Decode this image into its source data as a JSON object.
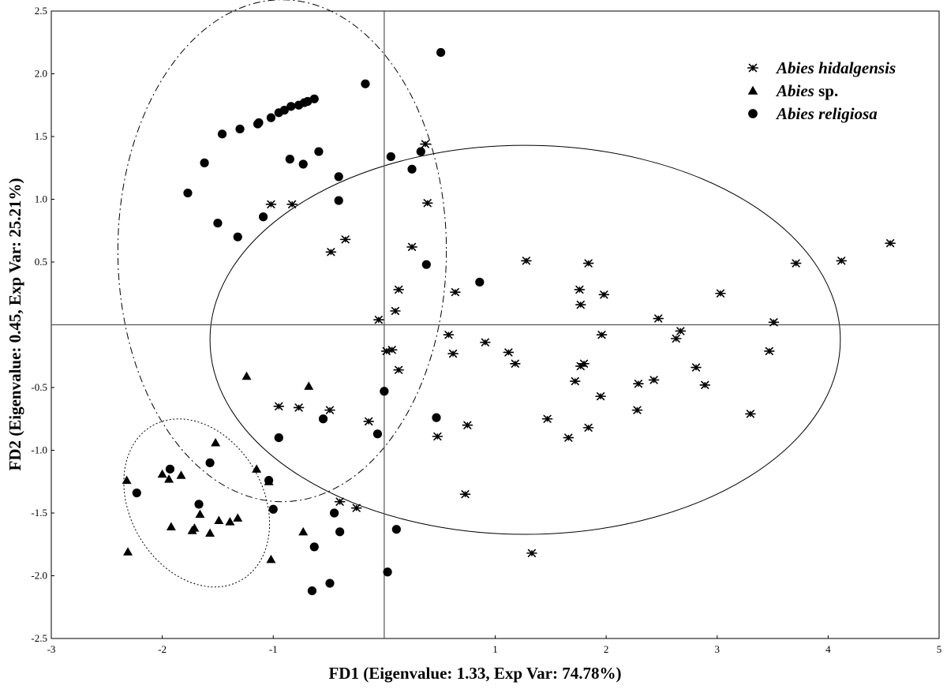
{
  "chart_data": {
    "type": "scatter",
    "xlabel": "FD1 (Eigenvalue: 1.33, Exp Var: 74.78%)",
    "ylabel": "FD2 (Eigenvalue: 0.45, Exp Var: 25.21%)",
    "xlim": [
      -3,
      5
    ],
    "ylim": [
      -2.5,
      2.5
    ],
    "x_ticks": [
      "-3",
      "-2",
      "-1",
      "1",
      "2",
      "3",
      "4",
      "5"
    ],
    "y_ticks": [
      "2.5",
      "2.0",
      "1.5",
      "1.0",
      "0.5",
      "-0.5",
      "-1.0",
      "-1.5",
      "-2.0",
      "-2.5"
    ],
    "reference_lines": {
      "x": 0,
      "y": 0
    },
    "grid": false,
    "legend_position": "top-right",
    "series": [
      {
        "name": "Abies hidalgensis",
        "legend_parts": [
          {
            "text": "Abies hidalgensis",
            "italic": true
          }
        ],
        "marker": "asterisk",
        "color": "#000000",
        "points": [
          [
            -1.02,
            0.96
          ],
          [
            -0.83,
            0.96
          ],
          [
            -0.48,
            0.58
          ],
          [
            -0.35,
            0.68
          ],
          [
            0.37,
            1.44
          ],
          [
            0.39,
            0.97
          ],
          [
            0.25,
            0.62
          ],
          [
            0.13,
            0.28
          ],
          [
            0.1,
            0.11
          ],
          [
            -0.05,
            0.04
          ],
          [
            0.64,
            0.26
          ],
          [
            0.58,
            -0.08
          ],
          [
            0.62,
            -0.23
          ],
          [
            0.02,
            -0.21
          ],
          [
            0.07,
            -0.2
          ],
          [
            0.13,
            -0.36
          ],
          [
            0.91,
            -0.14
          ],
          [
            1.12,
            -0.22
          ],
          [
            1.18,
            -0.31
          ],
          [
            1.28,
            0.51
          ],
          [
            1.47,
            -0.75
          ],
          [
            1.66,
            -0.9
          ],
          [
            1.72,
            -0.45
          ],
          [
            1.77,
            -0.33
          ],
          [
            1.8,
            -0.31
          ],
          [
            1.76,
            0.28
          ],
          [
            1.77,
            0.16
          ],
          [
            1.84,
            0.49
          ],
          [
            1.84,
            -0.82
          ],
          [
            1.95,
            -0.57
          ],
          [
            1.96,
            -0.08
          ],
          [
            1.98,
            0.24
          ],
          [
            2.28,
            -0.68
          ],
          [
            2.29,
            -0.47
          ],
          [
            2.43,
            -0.44
          ],
          [
            2.47,
            0.05
          ],
          [
            2.63,
            -0.11
          ],
          [
            2.67,
            -0.05
          ],
          [
            2.81,
            -0.34
          ],
          [
            2.89,
            -0.48
          ],
          [
            3.03,
            0.25
          ],
          [
            3.3,
            -0.71
          ],
          [
            3.47,
            -0.21
          ],
          [
            3.51,
            0.02
          ],
          [
            3.71,
            0.49
          ],
          [
            4.12,
            0.51
          ],
          [
            4.56,
            0.65
          ],
          [
            -0.95,
            -0.65
          ],
          [
            -0.77,
            -0.66
          ],
          [
            -0.49,
            -0.68
          ],
          [
            -0.4,
            -1.41
          ],
          [
            -0.25,
            -1.46
          ],
          [
            -0.14,
            -0.77
          ],
          [
            0.48,
            -0.89
          ],
          [
            0.75,
            -0.8
          ],
          [
            0.73,
            -1.35
          ],
          [
            1.33,
            -1.82
          ]
        ]
      },
      {
        "name": "Abies sp.",
        "legend_parts": [
          {
            "text": "Abies",
            "italic": true
          },
          {
            "text": " sp.",
            "italic": false
          }
        ],
        "marker": "triangle",
        "color": "#000000",
        "points": [
          [
            -2.32,
            -1.24
          ],
          [
            -2.31,
            -1.81
          ],
          [
            -2.0,
            -1.19
          ],
          [
            -1.94,
            -1.23
          ],
          [
            -1.83,
            -1.2
          ],
          [
            -1.92,
            -1.61
          ],
          [
            -1.73,
            -1.64
          ],
          [
            -1.71,
            -1.62
          ],
          [
            -1.66,
            -1.51
          ],
          [
            -1.57,
            -1.66
          ],
          [
            -1.52,
            -0.94
          ],
          [
            -1.49,
            -1.56
          ],
          [
            -1.39,
            -1.57
          ],
          [
            -1.32,
            -1.54
          ],
          [
            -1.24,
            -0.41
          ],
          [
            -1.15,
            -1.15
          ],
          [
            -1.04,
            -1.25
          ],
          [
            -0.68,
            -0.49
          ],
          [
            -0.73,
            -1.65
          ],
          [
            -1.02,
            -1.87
          ]
        ]
      },
      {
        "name": "Abies religiosa",
        "legend_parts": [
          {
            "text": "Abies religiosa",
            "italic": true
          }
        ],
        "marker": "circle",
        "color": "#000000",
        "points": [
          [
            -1.46,
            1.52
          ],
          [
            -1.3,
            1.56
          ],
          [
            -1.14,
            1.6
          ],
          [
            -1.13,
            1.61
          ],
          [
            -1.02,
            1.65
          ],
          [
            -0.95,
            1.69
          ],
          [
            -0.9,
            1.71
          ],
          [
            -0.84,
            1.74
          ],
          [
            -0.77,
            1.75
          ],
          [
            -0.72,
            1.77
          ],
          [
            -0.69,
            1.78
          ],
          [
            -0.63,
            1.8
          ],
          [
            -1.62,
            1.29
          ],
          [
            -1.77,
            1.05
          ],
          [
            -1.5,
            0.81
          ],
          [
            -1.32,
            0.7
          ],
          [
            -1.09,
            0.86
          ],
          [
            -0.85,
            1.32
          ],
          [
            -0.73,
            1.28
          ],
          [
            -0.59,
            1.38
          ],
          [
            -0.41,
            1.18
          ],
          [
            -0.41,
            0.99
          ],
          [
            -0.17,
            1.92
          ],
          [
            0.06,
            1.34
          ],
          [
            0.25,
            1.24
          ],
          [
            0.33,
            1.38
          ],
          [
            0.51,
            2.17
          ],
          [
            0.38,
            0.48
          ],
          [
            0.86,
            0.34
          ],
          [
            -1.04,
            -1.24
          ],
          [
            -1.0,
            -1.47
          ],
          [
            -0.95,
            -0.9
          ],
          [
            -0.55,
            -0.75
          ],
          [
            -0.45,
            -1.5
          ],
          [
            -0.4,
            -1.65
          ],
          [
            -0.63,
            -1.77
          ],
          [
            -0.49,
            -2.06
          ],
          [
            -0.65,
            -2.12
          ],
          [
            -0.06,
            -0.87
          ],
          [
            0.0,
            -0.53
          ],
          [
            0.11,
            -1.63
          ],
          [
            0.03,
            -1.97
          ],
          [
            0.47,
            -0.74
          ],
          [
            -2.23,
            -1.34
          ],
          [
            -1.93,
            -1.15
          ],
          [
            -1.57,
            -1.1
          ],
          [
            -1.67,
            -1.43
          ]
        ]
      }
    ],
    "ellipses": [
      {
        "group": "Abies hidalgensis",
        "style": "solid",
        "cx": 1.27,
        "cy": -0.12,
        "rx": 2.84,
        "ry": 1.55,
        "rotation_deg": 0
      },
      {
        "group": "Abies religiosa",
        "style": "dash-dot",
        "cx": -0.92,
        "cy": 0.59,
        "rx": 1.48,
        "ry": 2.0,
        "rotation_deg": 0
      },
      {
        "group": "Abies sp.",
        "style": "dotted",
        "cx": -1.69,
        "cy": -1.42,
        "rx": 0.6,
        "ry": 0.71,
        "rotation_deg": 30
      }
    ]
  }
}
